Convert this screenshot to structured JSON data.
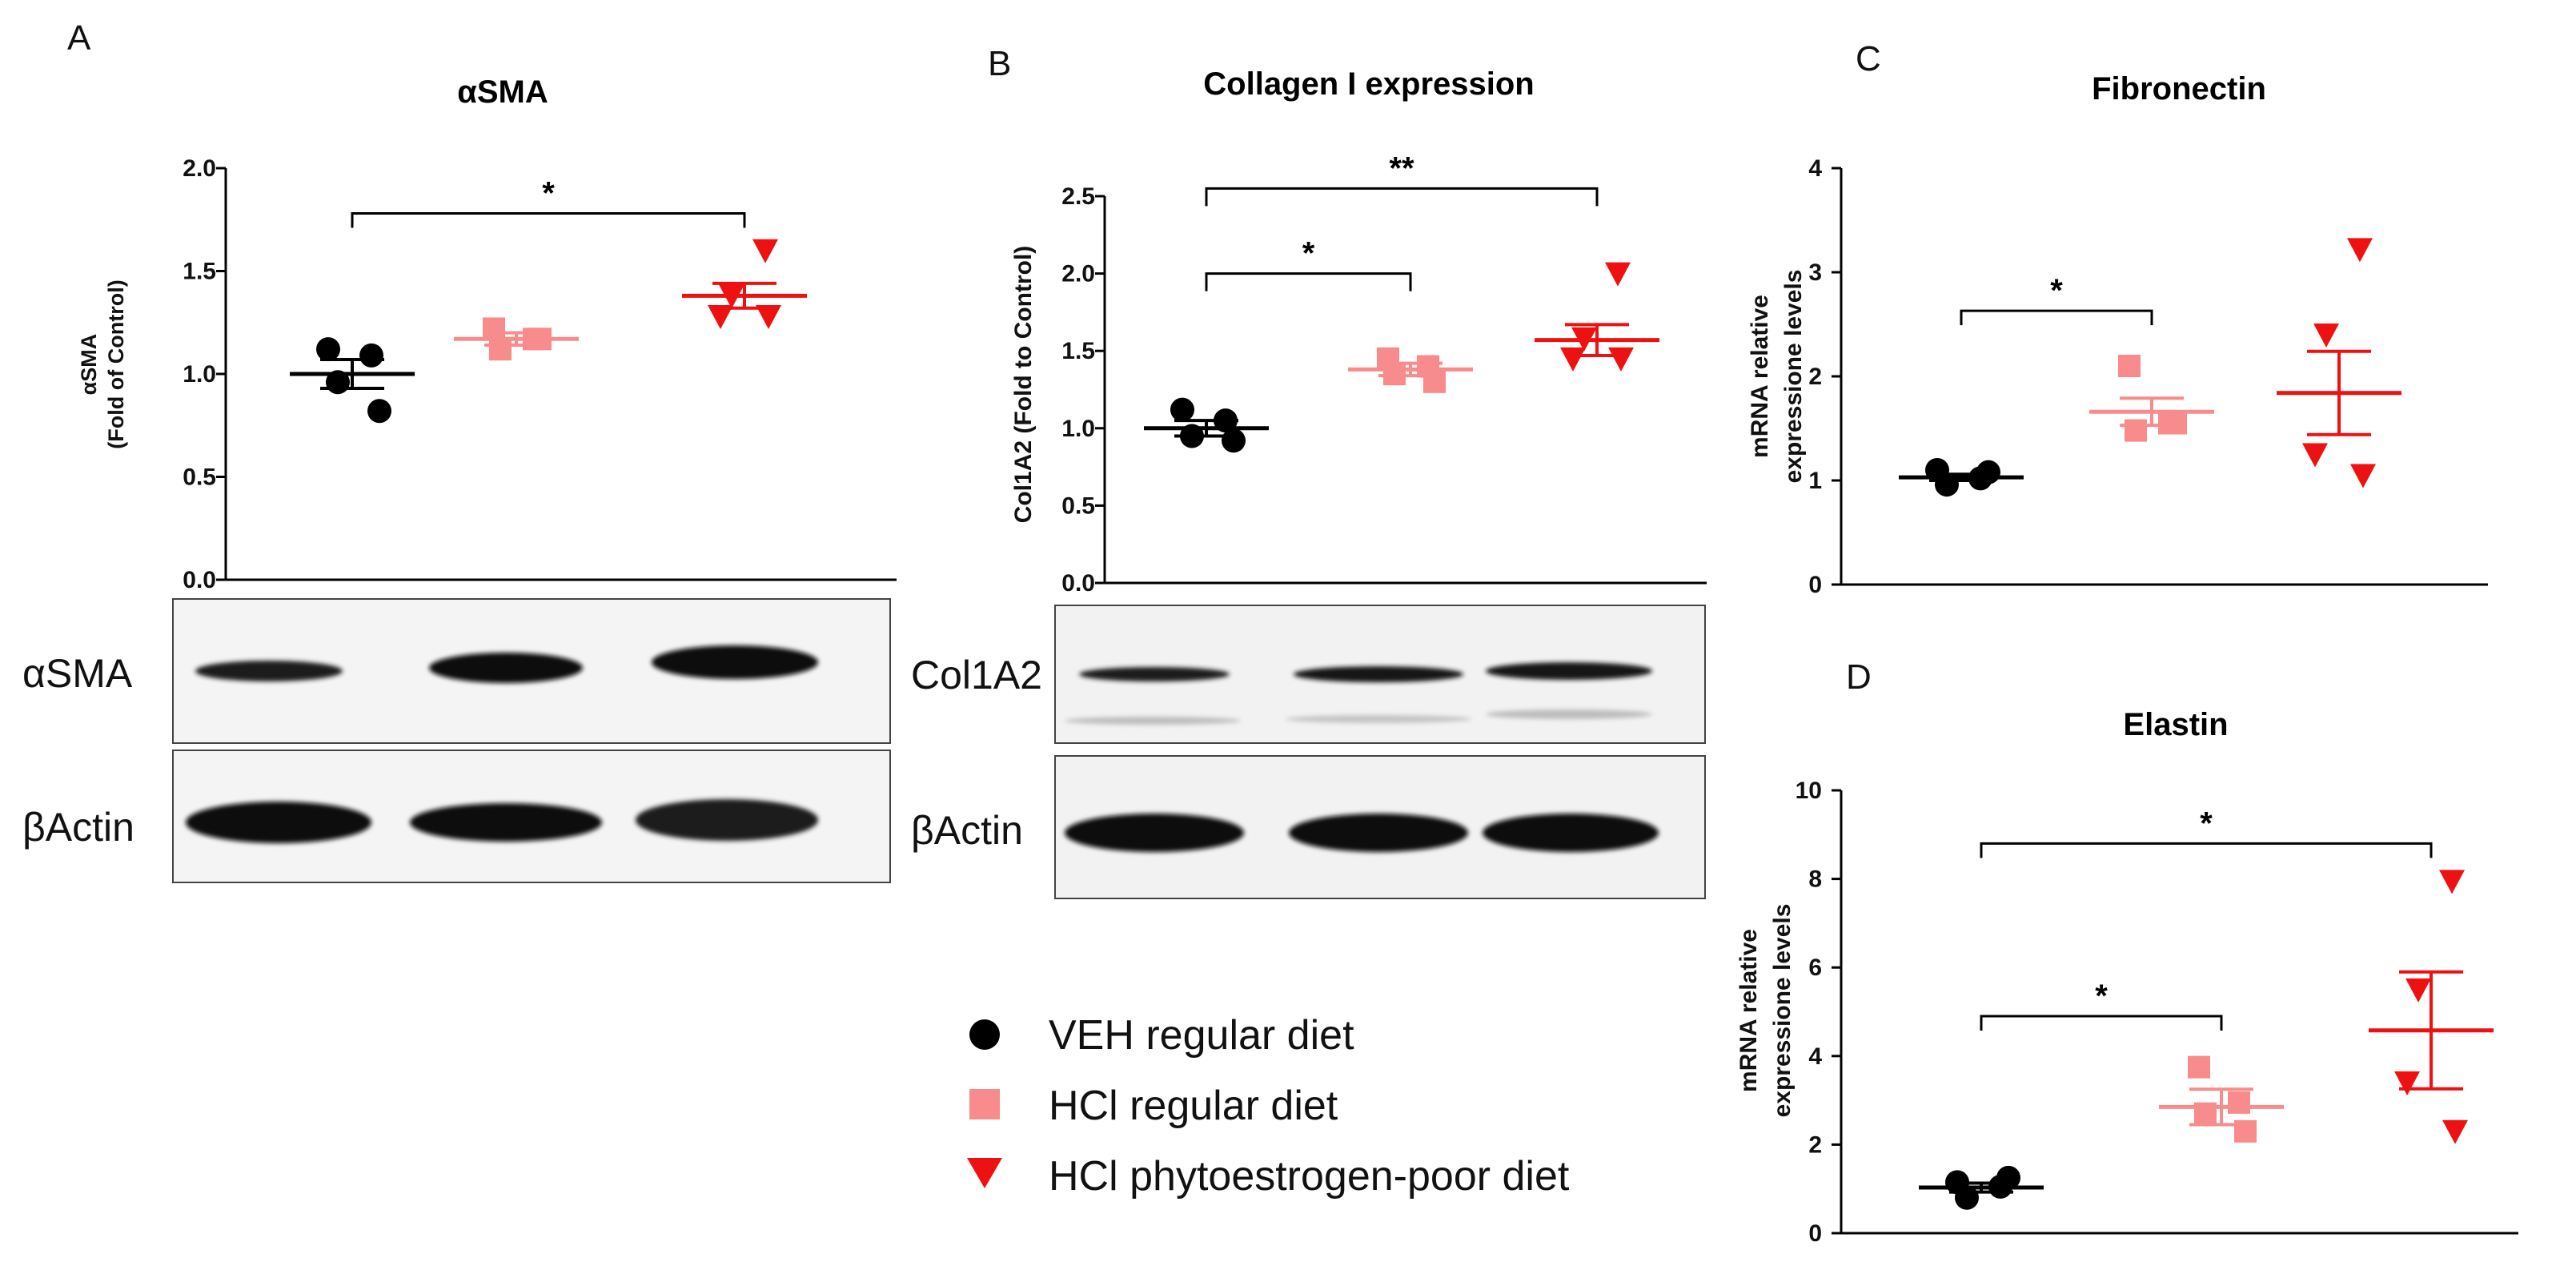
{
  "panels": {
    "A": "A",
    "B": "B",
    "C": "C",
    "D": "D"
  },
  "blots": {
    "A_top_label": "αSMA",
    "A_bottom_label": "βActin",
    "B_top_label": "Col1A2",
    "B_bottom_label": "βActin"
  },
  "legend": [
    {
      "label": "VEH regular diet",
      "color": "#000000",
      "marker": "circle"
    },
    {
      "label": "HCl regular diet",
      "color": "#f88b8b",
      "marker": "square"
    },
    {
      "label": "HCl phytoestrogen-poor diet",
      "color": "#ee1111",
      "marker": "triangle-down"
    }
  ],
  "chart_data": [
    {
      "id": "A",
      "type": "scatter",
      "title": "αSMA",
      "ylabel_lines": [
        "αSMA",
        "(Fold of Control)"
      ],
      "ylim": [
        0,
        2.0
      ],
      "yticks": [
        0.0,
        0.5,
        1.0,
        1.5,
        2.0
      ],
      "tick_format": "1dp",
      "groups": [
        {
          "name": "VEH regular diet",
          "mean": 1.0,
          "sem": 0.07,
          "points": [
            1.12,
            1.09,
            0.96,
            0.82
          ]
        },
        {
          "name": "HCl regular diet",
          "mean": 1.17,
          "sem": 0.03,
          "points": [
            1.22,
            1.17,
            1.12,
            1.17
          ]
        },
        {
          "name": "HCl phytoestrogen-poor diet",
          "mean": 1.38,
          "sem": 0.06,
          "points": [
            1.6,
            1.38,
            1.28,
            1.28
          ]
        }
      ],
      "significance": [
        {
          "from": 0,
          "to": 2,
          "y": 1.78,
          "label": "*"
        }
      ]
    },
    {
      "id": "B",
      "type": "scatter",
      "title": "Collagen  I expression",
      "ylabel_lines": [
        "Col1A2 (Fold to Control)"
      ],
      "ylim": [
        0,
        2.5
      ],
      "yticks": [
        0.0,
        0.5,
        1.0,
        1.5,
        2.0,
        2.5
      ],
      "tick_format": "1dp",
      "groups": [
        {
          "name": "VEH regular diet",
          "mean": 1.0,
          "sem": 0.05,
          "points": [
            1.12,
            1.05,
            0.95,
            0.92
          ]
        },
        {
          "name": "HCl regular diet",
          "mean": 1.38,
          "sem": 0.04,
          "points": [
            1.45,
            1.4,
            1.35,
            1.3
          ]
        },
        {
          "name": "HCl phytoestrogen-poor diet",
          "mean": 1.57,
          "sem": 0.1,
          "points": [
            2.0,
            1.58,
            1.45,
            1.45
          ]
        }
      ],
      "significance": [
        {
          "from": 0,
          "to": 1,
          "y": 2.0,
          "label": "*"
        },
        {
          "from": 0,
          "to": 2,
          "y": 2.55,
          "label": "**"
        }
      ]
    },
    {
      "id": "C",
      "type": "scatter",
      "title": "Fibronectin",
      "ylabel_lines": [
        "mRNA relative",
        "expressione levels"
      ],
      "ylim": [
        0,
        4
      ],
      "yticks": [
        0,
        1,
        2,
        3,
        4
      ],
      "tick_format": "int",
      "groups": [
        {
          "name": "VEH regular diet",
          "mean": 1.03,
          "sem": 0.03,
          "points": [
            1.1,
            1.02,
            0.96,
            1.08
          ]
        },
        {
          "name": "HCl regular diet",
          "mean": 1.66,
          "sem": 0.13,
          "points": [
            2.1,
            1.55,
            1.48,
            1.55
          ]
        },
        {
          "name": "HCl phytoestrogen-poor diet",
          "mean": 1.84,
          "sem": 0.4,
          "points": [
            3.22,
            2.4,
            1.25,
            1.05
          ]
        }
      ],
      "significance": [
        {
          "from": 0,
          "to": 1,
          "y": 2.63,
          "label": "*"
        }
      ]
    },
    {
      "id": "D",
      "type": "scatter",
      "title": "Elastin",
      "ylabel_lines": [
        "mRNA relative",
        "expressione levels"
      ],
      "ylim": [
        0,
        10
      ],
      "yticks": [
        0,
        2,
        4,
        6,
        8,
        10
      ],
      "tick_format": "int",
      "groups": [
        {
          "name": "VEH regular diet",
          "mean": 1.03,
          "sem": 0.1,
          "points": [
            1.15,
            1.05,
            0.8,
            1.25
          ]
        },
        {
          "name": "HCl regular diet",
          "mean": 2.85,
          "sem": 0.4,
          "points": [
            3.75,
            2.95,
            2.7,
            2.3
          ]
        },
        {
          "name": "HCl phytoestrogen-poor diet",
          "mean": 4.58,
          "sem": 1.32,
          "points": [
            7.95,
            5.5,
            3.4,
            2.3
          ]
        }
      ],
      "significance": [
        {
          "from": 0,
          "to": 1,
          "y": 4.9,
          "label": "*"
        },
        {
          "from": 0,
          "to": 2,
          "y": 8.8,
          "label": "*"
        }
      ]
    }
  ]
}
